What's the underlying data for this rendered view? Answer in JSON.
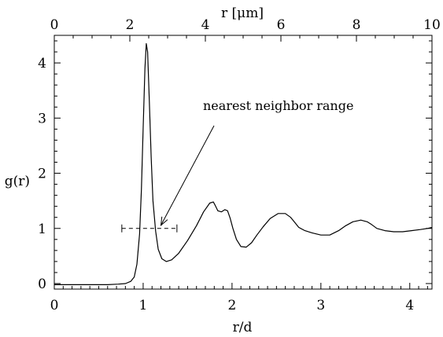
{
  "chart_data": {
    "type": "line",
    "xlabel": "r/d",
    "ylabel": "g(r)",
    "top_xlabel": "r [μm]",
    "xlim": [
      0,
      4.25
    ],
    "ylim": [
      -0.1,
      4.5
    ],
    "top_xlim": [
      0,
      10
    ],
    "x_ticks": [
      "0",
      "1",
      "2",
      "3",
      "4"
    ],
    "y_ticks": [
      "0",
      "1",
      "2",
      "3",
      "4"
    ],
    "top_x_ticks": [
      "0",
      "2",
      "4",
      "6",
      "8",
      "10"
    ],
    "grid": false,
    "series": [
      {
        "x": [
          0,
          0.3,
          0.6,
          0.72,
          0.8,
          0.86,
          0.9,
          0.93,
          0.96,
          0.98,
          1.0,
          1.02,
          1.035,
          1.05,
          1.07,
          1.09,
          1.11,
          1.14,
          1.17,
          1.21,
          1.26,
          1.32,
          1.4,
          1.5,
          1.6,
          1.68,
          1.75,
          1.79,
          1.81,
          1.84,
          1.88,
          1.92,
          1.95,
          1.98,
          2.01,
          2.05,
          2.1,
          2.16,
          2.22,
          2.28,
          2.35,
          2.43,
          2.52,
          2.6,
          2.66,
          2.7,
          2.75,
          2.82,
          2.9,
          3.0,
          3.1,
          3.2,
          3.28,
          3.36,
          3.45,
          3.52,
          3.57,
          3.63,
          3.72,
          3.82,
          3.92,
          4.02,
          4.12,
          4.2,
          4.25
        ],
        "y": [
          -0.02,
          -0.02,
          -0.02,
          -0.01,
          0.0,
          0.04,
          0.12,
          0.35,
          0.9,
          1.7,
          2.8,
          3.9,
          4.35,
          4.2,
          3.3,
          2.3,
          1.5,
          0.95,
          0.62,
          0.45,
          0.4,
          0.43,
          0.55,
          0.78,
          1.05,
          1.3,
          1.46,
          1.48,
          1.42,
          1.32,
          1.3,
          1.34,
          1.32,
          1.18,
          1.0,
          0.8,
          0.67,
          0.66,
          0.74,
          0.88,
          1.03,
          1.18,
          1.27,
          1.27,
          1.2,
          1.12,
          1.02,
          0.96,
          0.92,
          0.88,
          0.88,
          0.96,
          1.05,
          1.12,
          1.15,
          1.12,
          1.07,
          1.0,
          0.96,
          0.94,
          0.94,
          0.96,
          0.98,
          1.0,
          1.02
        ]
      }
    ],
    "annotation": {
      "text": "nearest neighbor range",
      "arrow_to": [
        1.2,
        1.0
      ],
      "range_x": [
        0.76,
        1.38
      ],
      "range_y": 1.0
    }
  }
}
